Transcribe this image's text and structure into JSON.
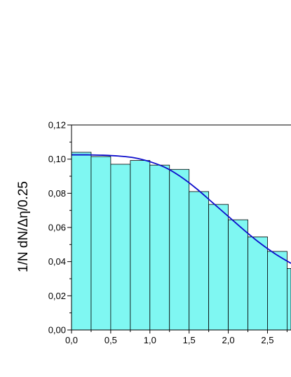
{
  "chart_data": {
    "type": "bar",
    "ylabel": "1/N dN/Δη/0.25",
    "xlim": [
      0.0,
      2.8
    ],
    "ylim": [
      0.0,
      0.12
    ],
    "x_ticks": [
      0.0,
      0.5,
      1.0,
      1.5,
      2.0,
      2.5
    ],
    "x_tick_labels": [
      "0,0",
      "0,5",
      "1,0",
      "1,5",
      "2,0",
      "2,5"
    ],
    "y_ticks": [
      0.0,
      0.02,
      0.04,
      0.06,
      0.08,
      0.1,
      0.12
    ],
    "y_tick_labels": [
      "0,00",
      "0,02",
      "0,04",
      "0,06",
      "0,08",
      "0,10",
      "0,12"
    ],
    "bin_width": 0.25,
    "bins": [
      {
        "x0": 0.0,
        "value": 0.104
      },
      {
        "x0": 0.25,
        "value": 0.1015
      },
      {
        "x0": 0.5,
        "value": 0.097
      },
      {
        "x0": 0.75,
        "value": 0.0992
      },
      {
        "x0": 1.0,
        "value": 0.0965
      },
      {
        "x0": 1.25,
        "value": 0.094
      },
      {
        "x0": 1.5,
        "value": 0.081
      },
      {
        "x0": 1.75,
        "value": 0.0735
      },
      {
        "x0": 2.0,
        "value": 0.0645
      },
      {
        "x0": 2.25,
        "value": 0.0545
      },
      {
        "x0": 2.5,
        "value": 0.046
      },
      {
        "x0": 2.75,
        "value": 0.036
      }
    ],
    "fit_curve": {
      "x": [
        0.0,
        0.2,
        0.4,
        0.6,
        0.8,
        1.0,
        1.2,
        1.4,
        1.6,
        1.8,
        2.0,
        2.2,
        2.4,
        2.6,
        2.8
      ],
      "y": [
        0.1025,
        0.1025,
        0.1023,
        0.1018,
        0.1008,
        0.0985,
        0.095,
        0.0895,
        0.0825,
        0.0745,
        0.0665,
        0.0585,
        0.051,
        0.0445,
        0.039
      ]
    },
    "colors": {
      "bar_fill": "#7ff7f2",
      "bar_stroke": "#000000",
      "curve": "#0d0dcc",
      "axis": "#000000"
    },
    "grid": false
  }
}
